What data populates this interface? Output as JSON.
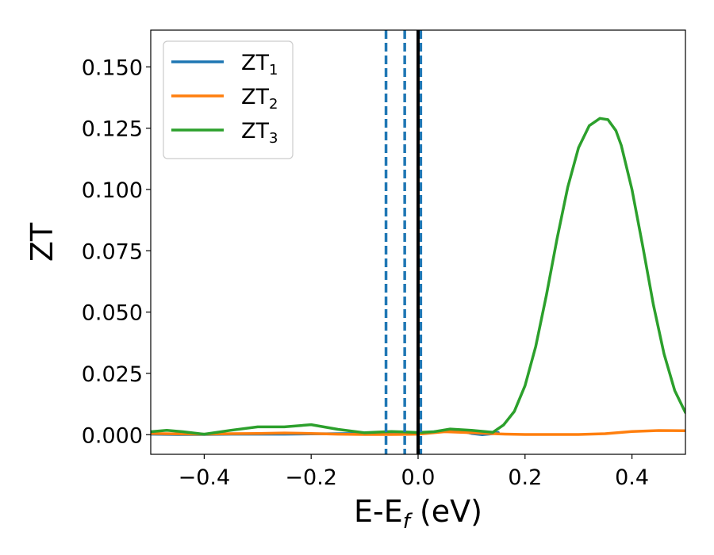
{
  "chart_data": {
    "type": "line",
    "xlabel_main": "E-E",
    "xlabel_sub": "f",
    "xlabel_unit": " (eV)",
    "ylabel": "ZT",
    "xlim": [
      -0.5,
      0.5
    ],
    "ylim": [
      -0.008,
      0.165
    ],
    "xticks": [
      -0.4,
      -0.2,
      0.0,
      0.2,
      0.4
    ],
    "xtick_labels": [
      "−0.4",
      "−0.2",
      "0.0",
      "0.2",
      "0.4"
    ],
    "yticks": [
      0.0,
      0.025,
      0.05,
      0.075,
      0.1,
      0.125,
      0.15
    ],
    "ytick_labels": [
      "0.000",
      "0.025",
      "0.050",
      "0.075",
      "0.100",
      "0.125",
      "0.150"
    ],
    "grid": false,
    "legend_position": "top-left",
    "series": [
      {
        "name": "ZT",
        "name_sub": "1",
        "color": "#1f77b4",
        "x": [
          -0.5,
          -0.45,
          -0.4,
          -0.35,
          -0.3,
          -0.25,
          -0.2,
          -0.15,
          -0.1,
          -0.05,
          0.0,
          0.05,
          0.08,
          0.1,
          0.12,
          0.14,
          0.15
        ],
        "y": [
          0.0002,
          0.0001,
          0.0001,
          0.0002,
          0.0002,
          0.0002,
          0.0003,
          0.0004,
          0.0005,
          0.0006,
          0.0007,
          0.0015,
          0.0015,
          0.0005,
          0.0,
          0.0004,
          0.0009
        ]
      },
      {
        "name": "ZT",
        "name_sub": "2",
        "color": "#ff7f0e",
        "x": [
          -0.5,
          -0.45,
          -0.4,
          -0.35,
          -0.3,
          -0.25,
          -0.2,
          -0.15,
          -0.1,
          -0.05,
          0.0,
          0.05,
          0.1,
          0.15,
          0.2,
          0.25,
          0.3,
          0.35,
          0.4,
          0.45,
          0.5
        ],
        "y": [
          0.0005,
          0.0003,
          0.0002,
          0.0004,
          0.0005,
          0.0007,
          0.0005,
          0.0002,
          0.0001,
          0.0001,
          0.0002,
          0.0012,
          0.0008,
          0.0003,
          0.0001,
          0.0001,
          0.0001,
          0.0004,
          0.0013,
          0.0017,
          0.0016
        ]
      },
      {
        "name": "ZT",
        "name_sub": "3",
        "color": "#2ca02c",
        "x": [
          -0.5,
          -0.47,
          -0.44,
          -0.4,
          -0.35,
          -0.3,
          -0.25,
          -0.2,
          -0.15,
          -0.1,
          -0.05,
          0.0,
          0.03,
          0.06,
          0.1,
          0.14,
          0.16,
          0.18,
          0.2,
          0.22,
          0.24,
          0.26,
          0.28,
          0.3,
          0.32,
          0.34,
          0.355,
          0.37,
          0.38,
          0.4,
          0.42,
          0.44,
          0.46,
          0.48,
          0.5
        ],
        "y": [
          0.0012,
          0.0018,
          0.0012,
          0.0002,
          0.0018,
          0.0032,
          0.0032,
          0.0041,
          0.0022,
          0.0008,
          0.0013,
          0.0009,
          0.0012,
          0.0023,
          0.0018,
          0.001,
          0.004,
          0.0095,
          0.02,
          0.036,
          0.057,
          0.08,
          0.101,
          0.117,
          0.126,
          0.129,
          0.1285,
          0.124,
          0.118,
          0.1,
          0.077,
          0.053,
          0.033,
          0.018,
          0.009
        ]
      }
    ],
    "vlines": [
      {
        "x": -0.06,
        "color": "#1f77b4",
        "style": "dashed"
      },
      {
        "x": -0.025,
        "color": "#1f77b4",
        "style": "dashed"
      },
      {
        "x": 0.005,
        "color": "#1f77b4",
        "style": "dashed"
      },
      {
        "x": 0.0,
        "color": "#000000",
        "style": "solid"
      }
    ]
  }
}
